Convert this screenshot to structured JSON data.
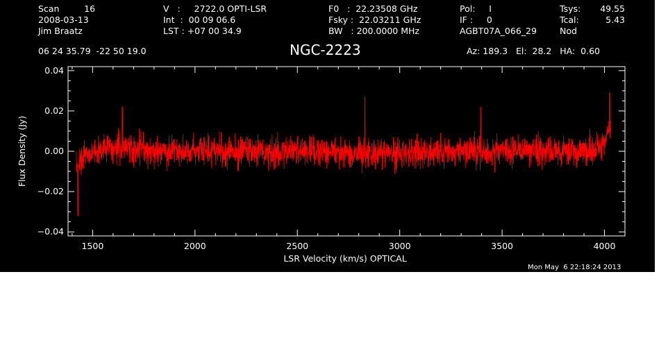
{
  "header": {
    "col1": [
      "Scan         16",
      "2008-03-13",
      "Jim Braatz"
    ],
    "col2": [
      "V   :     2722.0 OPTI-LSR",
      "Int  :  00 09 06.6",
      "LST : +07 00 34.9"
    ],
    "col3": [
      "F0   :  22.23508 GHz",
      "Fsky :  22.03211 GHz",
      "BW   : 200.0000 MHz"
    ],
    "col4": [
      "Pol:     I",
      "IF :     0",
      "AGBT07A_066_29"
    ],
    "col5_labels": [
      "Tsys:",
      "Tcal:",
      "Nod"
    ],
    "col5_values": [
      "49.55",
      "5.43",
      ""
    ],
    "coords": "06 24 35.79  -22 50 19.0",
    "source": "NGC-2223",
    "azelha": "Az: 189.3   El:  28.2   HA:  0.60",
    "timestamp": "Mon May  6 22:18:24 2013"
  },
  "chart_data": {
    "type": "line",
    "xlabel": "LSR Velocity (km/s) OPTICAL",
    "ylabel": "Flux Density (Jy)",
    "xlim": [
      1380,
      4100
    ],
    "ylim": [
      -0.042,
      0.042
    ],
    "x_ticks": [
      1500,
      2000,
      2500,
      3000,
      3500,
      4000
    ],
    "x_tick_labels": [
      "1500",
      "2000",
      "2500",
      "3000",
      "3500",
      "4000"
    ],
    "y_ticks": [
      -0.04,
      -0.02,
      0.0,
      0.02,
      0.04
    ],
    "y_tick_labels": [
      "−0.04",
      "−0.02",
      "0.00",
      "0.02",
      "0.04"
    ],
    "grid": false,
    "background": "#000000",
    "axis_color": "#ffffff",
    "series_color": "#ff0000",
    "series": [
      {
        "x_range": [
          1420,
          4030
        ],
        "baseline_points": [
          [
            1420,
            -0.008
          ],
          [
            1440,
            -0.004
          ],
          [
            1500,
            0.0
          ],
          [
            1600,
            0.002
          ],
          [
            1700,
            0.001
          ],
          [
            2000,
            0.0
          ],
          [
            2500,
            0.0
          ],
          [
            3000,
            -0.001
          ],
          [
            3500,
            0.0
          ],
          [
            3900,
            0.0
          ],
          [
            3980,
            0.001
          ],
          [
            4000,
            0.004
          ],
          [
            4020,
            0.01
          ],
          [
            4030,
            0.015
          ]
        ],
        "noise_rms": 0.0065,
        "extremes": [
          [
            1428,
            -0.032
          ],
          [
            1645,
            0.022
          ],
          [
            2830,
            0.027
          ],
          [
            4025,
            0.029
          ],
          [
            3395,
            0.022
          ]
        ]
      }
    ]
  }
}
